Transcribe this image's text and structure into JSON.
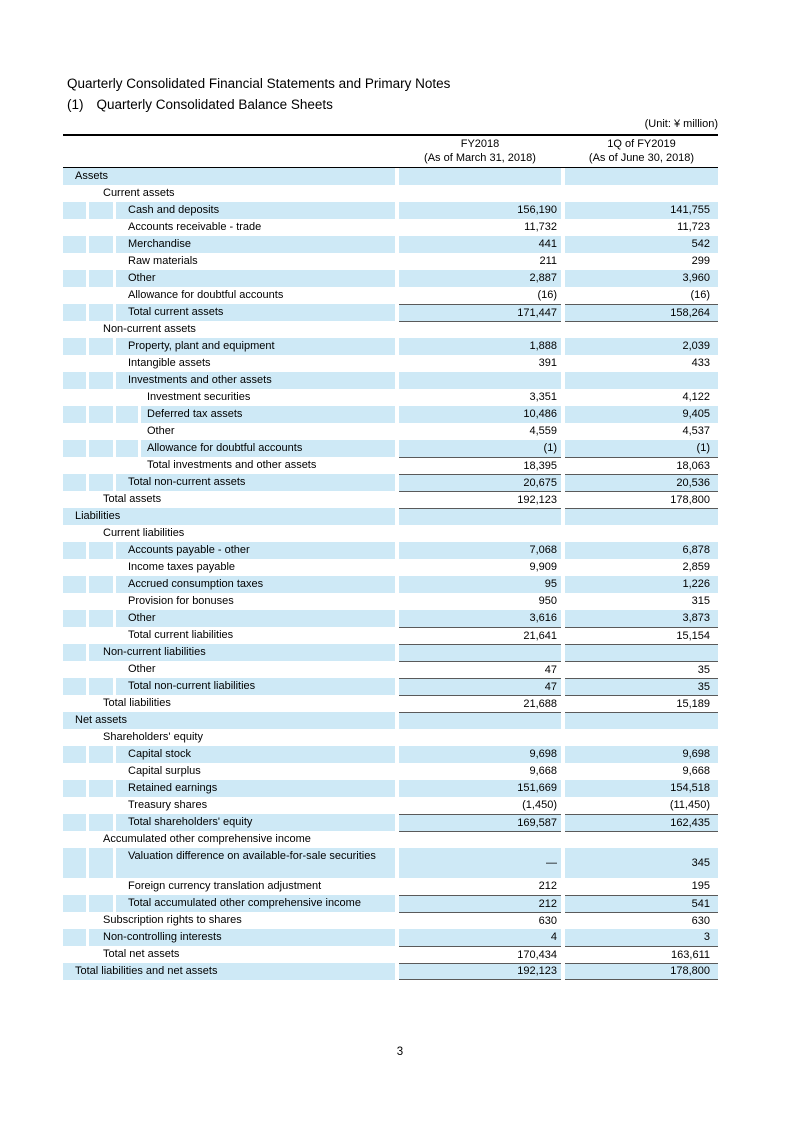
{
  "document": {
    "title": "Quarterly Consolidated Financial Statements and Primary Notes",
    "subtitle_number": "(1)",
    "subtitle": "Quarterly Consolidated Balance Sheets",
    "unit_note": "(Unit: ¥ million)",
    "page_number": "3"
  },
  "colors": {
    "row_shade": "#cee9f6",
    "rule_gray": "#5a5a5a",
    "border_black": "#000000"
  },
  "table": {
    "columns": [
      {
        "line1": "FY2018",
        "line2": "(As of March 31, 2018)"
      },
      {
        "line1": "1Q of FY2019",
        "line2": "(As of June 30, 2018)"
      }
    ],
    "rows": [
      {
        "label": "Assets",
        "level": 0,
        "shaded": true,
        "v1": "",
        "v2": ""
      },
      {
        "label": "Current assets",
        "level": 1,
        "shaded": false,
        "v1": "",
        "v2": ""
      },
      {
        "label": "Cash and deposits",
        "level": 2,
        "shaded": true,
        "v1": "156,190",
        "v2": "141,755"
      },
      {
        "label": "Accounts receivable - trade",
        "level": 2,
        "shaded": false,
        "v1": "11,732",
        "v2": "11,723"
      },
      {
        "label": "Merchandise",
        "level": 2,
        "shaded": true,
        "v1": "441",
        "v2": "542"
      },
      {
        "label": "Raw materials",
        "level": 2,
        "shaded": false,
        "v1": "211",
        "v2": "299"
      },
      {
        "label": "Other",
        "level": 2,
        "shaded": true,
        "v1": "2,887",
        "v2": "3,960"
      },
      {
        "label": "Allowance for doubtful accounts",
        "level": 2,
        "shaded": false,
        "v1": "(16)",
        "v2": "(16)"
      },
      {
        "label": "Total current assets",
        "level": 2,
        "shaded": true,
        "v1": "171,447",
        "v2": "158,264",
        "bt": true
      },
      {
        "label": "Non-current assets",
        "level": 1,
        "shaded": false,
        "v1": "",
        "v2": "",
        "bt": true
      },
      {
        "label": "Property, plant and equipment",
        "level": 2,
        "shaded": true,
        "v1": "1,888",
        "v2": "2,039"
      },
      {
        "label": "Intangible assets",
        "level": 2,
        "shaded": false,
        "v1": "391",
        "v2": "433"
      },
      {
        "label": "Investments and other assets",
        "level": 2,
        "shaded": true,
        "v1": "",
        "v2": ""
      },
      {
        "label": "Investment securities",
        "level": 3,
        "shaded": false,
        "v1": "3,351",
        "v2": "4,122"
      },
      {
        "label": "Deferred tax assets",
        "level": 3,
        "shaded": true,
        "v1": "10,486",
        "v2": "9,405"
      },
      {
        "label": "Other",
        "level": 3,
        "shaded": false,
        "v1": "4,559",
        "v2": "4,537"
      },
      {
        "label": "Allowance for doubtful accounts",
        "level": 3,
        "shaded": true,
        "v1": "(1)",
        "v2": "(1)"
      },
      {
        "label": "Total investments and other assets",
        "level": 3,
        "shaded": false,
        "v1": "18,395",
        "v2": "18,063",
        "bt": true
      },
      {
        "label": "Total non-current assets",
        "level": 2,
        "shaded": true,
        "v1": "20,675",
        "v2": "20,536",
        "bt": true
      },
      {
        "label": "Total assets",
        "level": 1,
        "shaded": false,
        "v1": "192,123",
        "v2": "178,800",
        "bt": true
      },
      {
        "label": "Liabilities",
        "level": 0,
        "shaded": true,
        "v1": "",
        "v2": "",
        "bt": true
      },
      {
        "label": "Current liabilities",
        "level": 1,
        "shaded": false,
        "v1": "",
        "v2": ""
      },
      {
        "label": "Accounts payable - other",
        "level": 2,
        "shaded": true,
        "v1": "7,068",
        "v2": "6,878"
      },
      {
        "label": "Income taxes payable",
        "level": 2,
        "shaded": false,
        "v1": "9,909",
        "v2": "2,859"
      },
      {
        "label": "Accrued consumption taxes",
        "level": 2,
        "shaded": true,
        "v1": "95",
        "v2": "1,226"
      },
      {
        "label": "Provision for bonuses",
        "level": 2,
        "shaded": false,
        "v1": "950",
        "v2": "315"
      },
      {
        "label": "Other",
        "level": 2,
        "shaded": true,
        "v1": "3,616",
        "v2": "3,873"
      },
      {
        "label": "Total current liabilities",
        "level": 2,
        "shaded": false,
        "v1": "21,641",
        "v2": "15,154",
        "bt": true
      },
      {
        "label": "Non-current liabilities",
        "level": 1,
        "shaded": true,
        "v1": "",
        "v2": "",
        "bt": true
      },
      {
        "label": "Other",
        "level": 2,
        "shaded": false,
        "v1": "47",
        "v2": "35",
        "bt": true
      },
      {
        "label": "Total non-current liabilities",
        "level": 2,
        "shaded": true,
        "v1": "47",
        "v2": "35",
        "bt": true
      },
      {
        "label": "Total liabilities",
        "level": 1,
        "shaded": false,
        "v1": "21,688",
        "v2": "15,189",
        "bt": true
      },
      {
        "label": "Net assets",
        "level": 0,
        "shaded": true,
        "v1": "",
        "v2": "",
        "bt": true
      },
      {
        "label": "Shareholders' equity",
        "level": 1,
        "shaded": false,
        "v1": "",
        "v2": ""
      },
      {
        "label": "Capital stock",
        "level": 2,
        "shaded": true,
        "v1": "9,698",
        "v2": "9,698"
      },
      {
        "label": "Capital surplus",
        "level": 2,
        "shaded": false,
        "v1": "9,668",
        "v2": "9,668"
      },
      {
        "label": "Retained earnings",
        "level": 2,
        "shaded": true,
        "v1": "151,669",
        "v2": "154,518"
      },
      {
        "label": "Treasury shares",
        "level": 2,
        "shaded": false,
        "v1": "(1,450)",
        "v2": "(11,450)"
      },
      {
        "label": "Total shareholders' equity",
        "level": 2,
        "shaded": true,
        "v1": "169,587",
        "v2": "162,435",
        "bt": true
      },
      {
        "label": "Accumulated other comprehensive income",
        "level": 1,
        "shaded": false,
        "v1": "",
        "v2": "",
        "bt": true
      },
      {
        "label": "Valuation difference on available-for-sale securities",
        "level": 2,
        "shaded": true,
        "v1": "—",
        "v2": "345",
        "tall": true
      },
      {
        "label": "Foreign currency translation adjustment",
        "level": 2,
        "shaded": false,
        "v1": "212",
        "v2": "195"
      },
      {
        "label": "Total accumulated other comprehensive income",
        "level": 2,
        "shaded": true,
        "v1": "212",
        "v2": "541",
        "bt": true
      },
      {
        "label": "Subscription rights to shares",
        "level": 1,
        "shaded": false,
        "v1": "630",
        "v2": "630",
        "bt": true
      },
      {
        "label": "Non-controlling interests",
        "level": 1,
        "shaded": true,
        "v1": "4",
        "v2": "3"
      },
      {
        "label": "Total net assets",
        "level": 1,
        "shaded": false,
        "v1": "170,434",
        "v2": "163,611",
        "bt": true
      },
      {
        "label": "Total liabilities and net assets",
        "level": 0,
        "shaded": true,
        "v1": "192,123",
        "v2": "178,800",
        "bt": true,
        "bb": true
      }
    ]
  }
}
